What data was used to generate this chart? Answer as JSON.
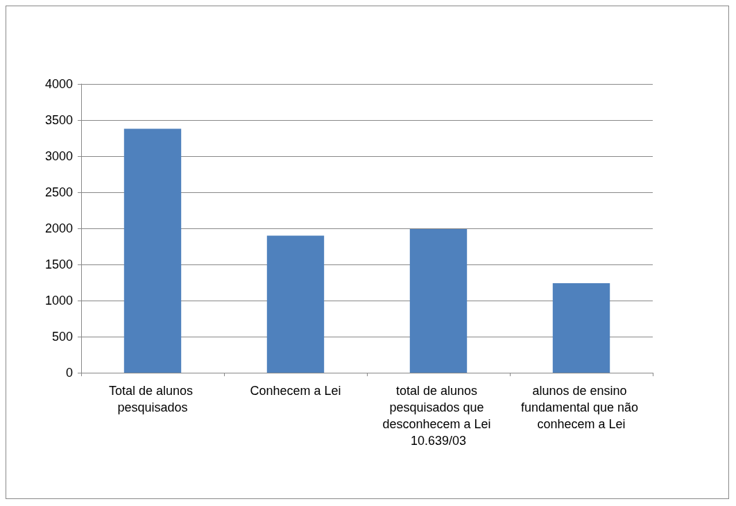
{
  "chart_data": {
    "type": "bar",
    "categories": [
      "Total de alunos pesquisados",
      "Conhecem a Lei",
      "total de alunos pesquisados que desconhecem a Lei 10.639/03",
      "alunos de ensino fundamental que não conhecem a Lei"
    ],
    "values": [
      3380,
      1900,
      1990,
      1240
    ],
    "color": "#4f81bd",
    "ylim": [
      0,
      4000
    ],
    "yticks": [
      0,
      500,
      1000,
      1500,
      2000,
      2500,
      3000,
      3500,
      4000
    ],
    "grid": "y"
  }
}
